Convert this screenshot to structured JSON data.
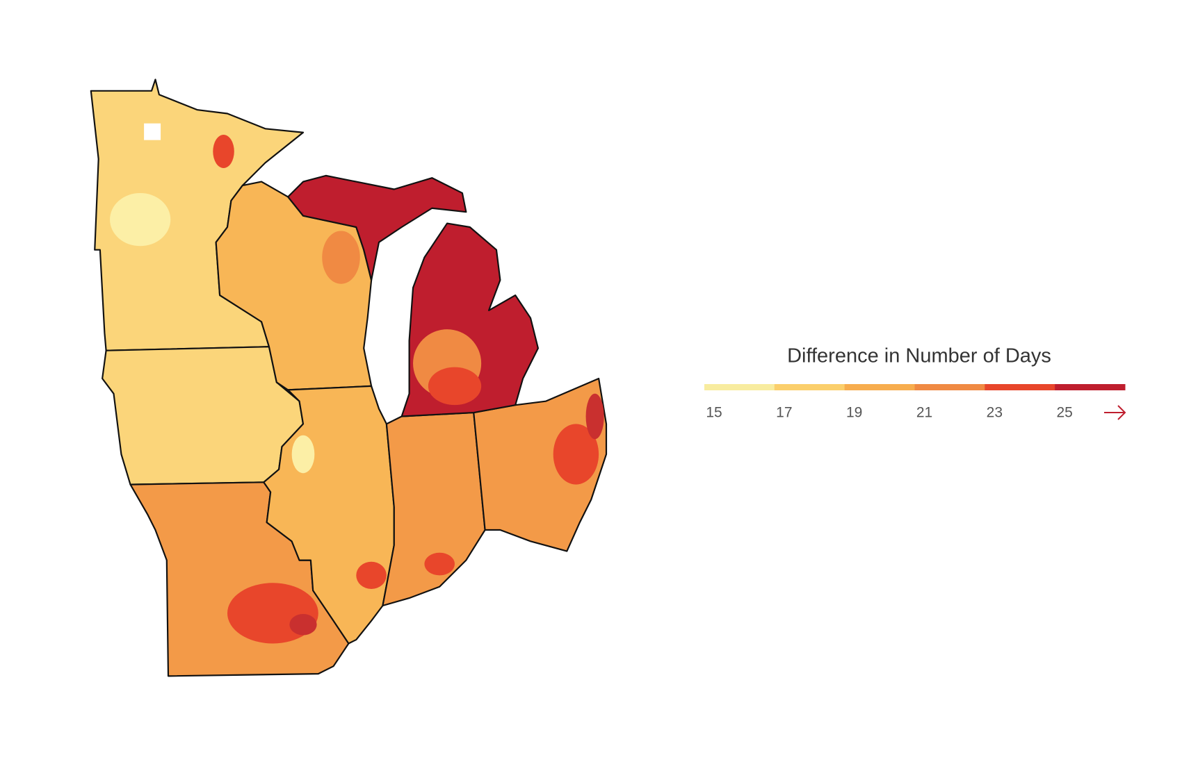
{
  "legend": {
    "title": "Difference in Number of Days",
    "ticks": [
      15,
      17,
      19,
      21,
      23,
      25
    ],
    "colors": [
      "#f8ec9f",
      "#fbcf6c",
      "#f7ad4e",
      "#f08a43",
      "#e8462b",
      "#bf1e2e"
    ]
  }
}
